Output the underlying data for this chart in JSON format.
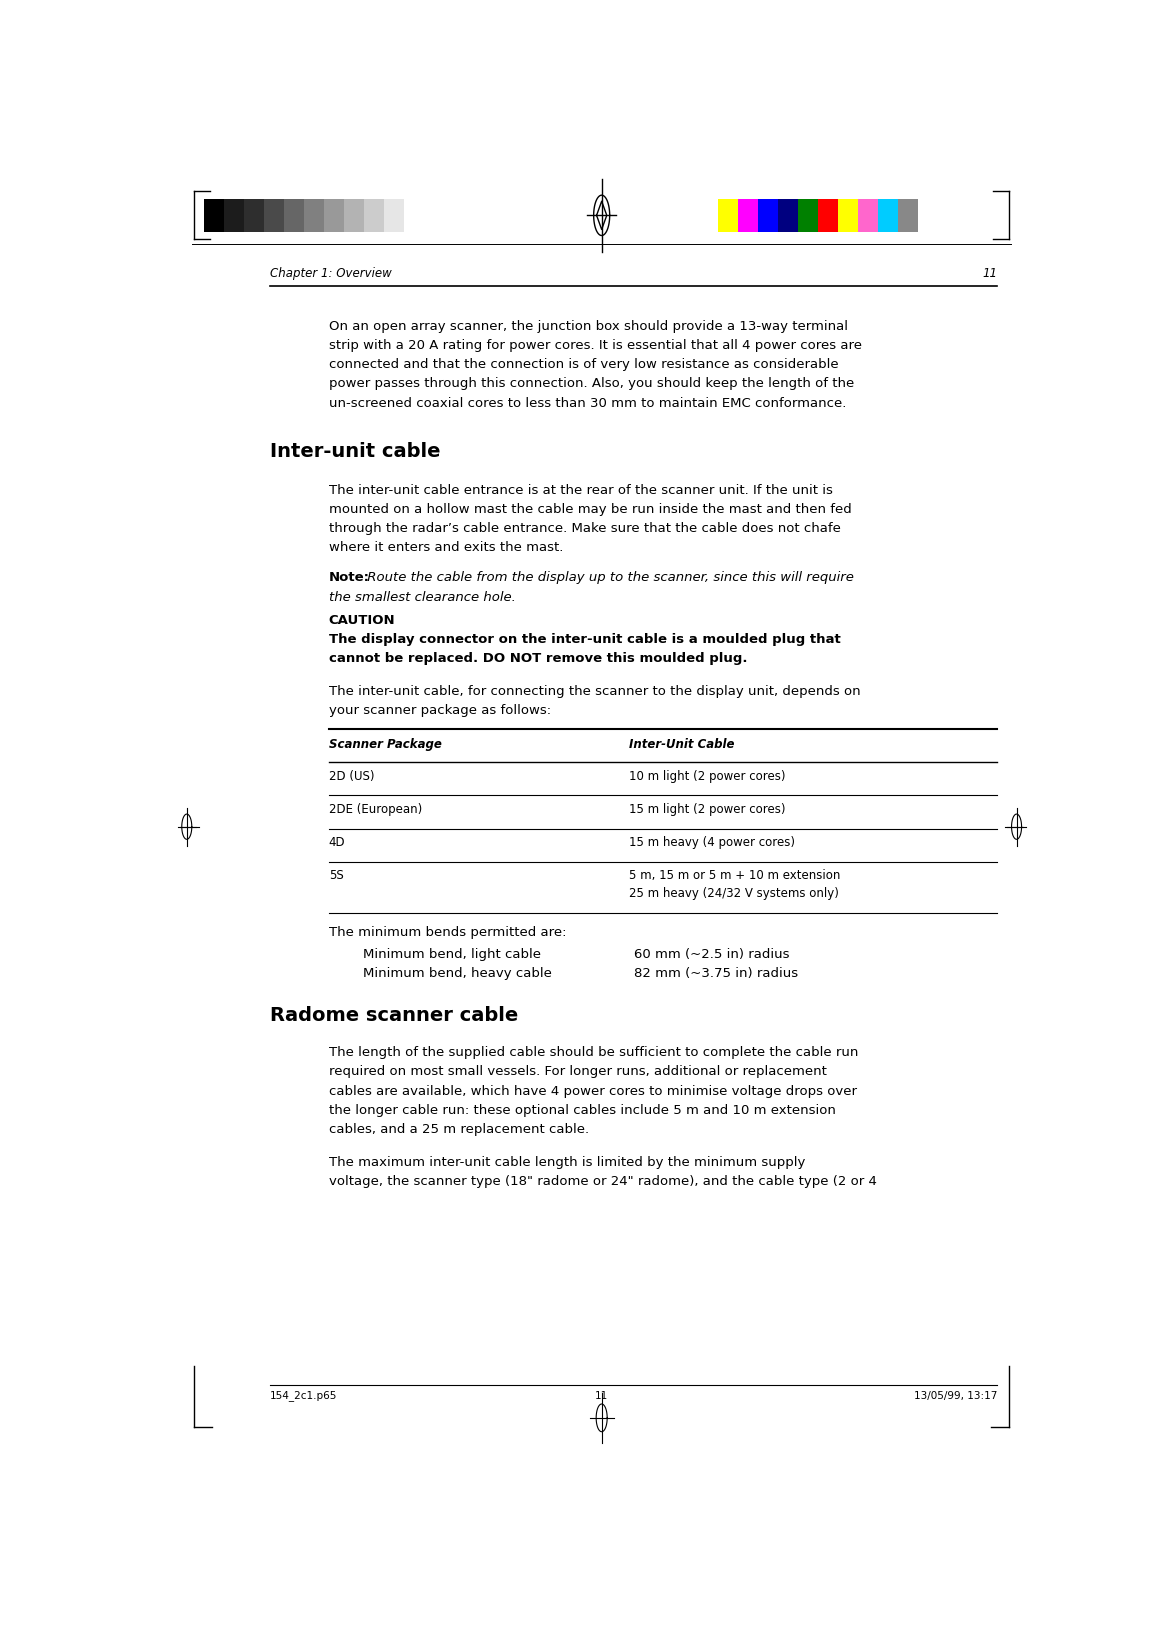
{
  "page_bg": "#ffffff",
  "header_chapter": "Chapter 1: Overview",
  "header_page": "11",
  "footer_file": "154_2c1.p65",
  "footer_page": "11",
  "footer_date": "13/05/99, 13:17",
  "para1_lines": [
    "On an open array scanner, the junction box should provide a 13-way terminal",
    "strip with a 20 A rating for power cores. It is essential that all 4 power cores are",
    "connected and that the connection is of very low resistance as considerable",
    "power passes through this connection. Also, you should keep the length of the",
    "un-screened coaxial cores to less than 30 mm to maintain EMC conformance."
  ],
  "section1_title": "Inter-unit cable",
  "para2_lines": [
    "The inter-unit cable entrance is at the rear of the scanner unit. If the unit is",
    "mounted on a hollow mast the cable may be run inside the mast and then fed",
    "through the radar’s cable entrance. Make sure that the cable does not chafe",
    "where it enters and exits the mast."
  ],
  "note_bold": "Note:",
  "note_italic_line1": " Route the cable from the display up to the scanner, since this will require",
  "note_italic_line2": "the smallest clearance hole.",
  "caution_label": "CAUTION",
  "caution_lines": [
    "The display connector on the inter-unit cable is a moulded plug that",
    "cannot be replaced. DO NOT remove this moulded plug."
  ],
  "para3_lines": [
    "The inter-unit cable, for connecting the scanner to the display unit, depends on",
    "your scanner package as follows:"
  ],
  "table_col1_header": "Scanner Package",
  "table_col2_header": "Inter-Unit Cable",
  "table_rows": [
    [
      "2D (US)",
      "10 m light (2 power cores)"
    ],
    [
      "2DE (European)",
      "15 m light (2 power cores)"
    ],
    [
      "4D",
      "15 m heavy (4 power cores)"
    ],
    [
      "5S",
      "5 m, 15 m or 5 m + 10 m extension\n25 m heavy (24/32 V systems only)"
    ]
  ],
  "para4": "The minimum bends permitted are:",
  "bend1_label": "Minimum bend, light cable",
  "bend1_value": "60 mm (~2.5 in) radius",
  "bend2_label": "Minimum bend, heavy cable",
  "bend2_value": "82 mm (~3.75 in) radius",
  "section2_title": "Radome scanner cable",
  "para5_lines": [
    "The length of the supplied cable should be sufficient to complete the cable run",
    "required on most small vessels. For longer runs, additional or replacement",
    "cables are available, which have 4 power cores to minimise voltage drops over",
    "the longer cable run: these optional cables include 5 m and 10 m extension",
    "cables, and a 25 m replacement cable."
  ],
  "para6_lines": [
    "The maximum inter-unit cable length is limited by the minimum supply",
    "voltage, the scanner type (18\" radome or 24\" radome), and the cable type (2 or 4"
  ],
  "gray_colors": [
    "#000000",
    "#1c1c1c",
    "#2e2e2e",
    "#4a4a4a",
    "#666666",
    "#808080",
    "#999999",
    "#b3b3b3",
    "#cccccc",
    "#e6e6e6",
    "#ffffff"
  ],
  "right_colors": [
    "#ffff00",
    "#ff00ff",
    "#0000ff",
    "#000080",
    "#008000",
    "#ff0000",
    "#ffff00",
    "#ff66cc",
    "#00ccff",
    "#888888"
  ],
  "text_color": "#000000",
  "font_size_body": 9.5,
  "font_size_header": 8.5,
  "font_size_section": 14,
  "font_size_footer": 7.5,
  "font_size_table": 8.5
}
